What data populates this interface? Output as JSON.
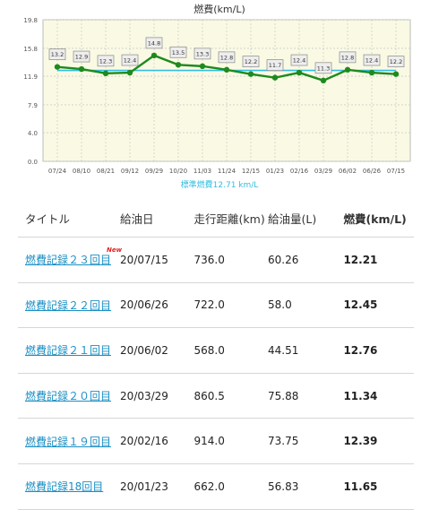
{
  "chart_data": {
    "type": "line",
    "title": "燃費(km/L)",
    "x": [
      "07/24",
      "08/10",
      "08/21",
      "09/12",
      "09/29",
      "10/20",
      "11/03",
      "11/24",
      "12/15",
      "01/23",
      "02/16",
      "03/29",
      "06/02",
      "06/26",
      "07/15"
    ],
    "series": [
      {
        "values": [
          13.2,
          12.9,
          12.3,
          12.4,
          14.8,
          13.5,
          13.3,
          12.8,
          12.2,
          11.7,
          12.4,
          11.3,
          12.8,
          12.4,
          12.2
        ]
      }
    ],
    "standard_value": 12.71,
    "standard_label": "標準燃費12.71 km/L",
    "yticks": [
      "19.8",
      "15.8",
      "11.9",
      "7.9",
      "4.0",
      "0.0"
    ],
    "ylim": [
      0,
      19.8
    ],
    "grid": true,
    "colors": {
      "line": "#1e8a1e",
      "standard": "#33bde0",
      "plot_bg": "#fafae4",
      "label_bg": "#eeeeee"
    }
  },
  "table": {
    "headers": {
      "title": "タイトル",
      "date": "給油日",
      "distance": "走行距離(km)",
      "fuel": "給油量(L)",
      "economy": "燃費(km/L)"
    },
    "new_badge": "New",
    "rows": [
      {
        "title": "燃費記録２３回目",
        "date": "20/07/15",
        "distance": "736.0",
        "fuel": "60.26",
        "economy": "12.21"
      },
      {
        "title": "燃費記録２２回目",
        "date": "20/06/26",
        "distance": "722.0",
        "fuel": "58.0",
        "economy": "12.45"
      },
      {
        "title": "燃費記録２１回目",
        "date": "20/06/02",
        "distance": "568.0",
        "fuel": "44.51",
        "economy": "12.76"
      },
      {
        "title": "燃費記録２０回目",
        "date": "20/03/29",
        "distance": "860.5",
        "fuel": "75.88",
        "economy": "11.34"
      },
      {
        "title": "燃費記録１９回目",
        "date": "20/02/16",
        "distance": "914.0",
        "fuel": "73.75",
        "economy": "12.39"
      },
      {
        "title": "燃費記録18回目",
        "date": "20/01/23",
        "distance": "662.0",
        "fuel": "56.83",
        "economy": "11.65"
      }
    ]
  }
}
